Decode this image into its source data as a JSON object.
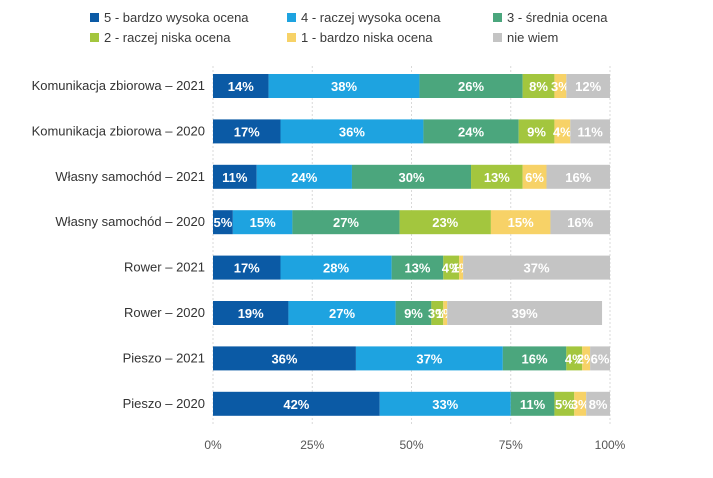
{
  "chart_data": {
    "type": "bar",
    "orientation": "horizontal",
    "stacked": true,
    "title": "",
    "xlabel": "",
    "ylabel": "",
    "xlim": [
      0,
      100
    ],
    "x_ticks": [
      "0%",
      "25%",
      "50%",
      "75%",
      "100%"
    ],
    "legend_position": "top",
    "categories": [
      "Komunikacja zbiorowa – 2021",
      "Komunikacja zbiorowa – 2020",
      "Własny samochód – 2021",
      "Własny samochód – 2020",
      "Rower – 2021",
      "Rower – 2020",
      "Pieszo – 2021",
      "Pieszo – 2020"
    ],
    "series": [
      {
        "name": "5 - bardzo wysoka ocena",
        "color": "#0b5aa5",
        "label_color": "#ffffff",
        "values": [
          14,
          17,
          11,
          5,
          17,
          19,
          36,
          42
        ]
      },
      {
        "name": "4 - raczej wysoka ocena",
        "color": "#1ea3e0",
        "label_color": "#ffffff",
        "values": [
          38,
          36,
          24,
          15,
          28,
          27,
          37,
          33
        ]
      },
      {
        "name": "3 - średnia ocena",
        "color": "#4ba67d",
        "label_color": "#ffffff",
        "values": [
          26,
          24,
          30,
          27,
          13,
          9,
          16,
          11
        ]
      },
      {
        "name": "2 - raczej niska ocena",
        "color": "#a3c63e",
        "label_color": "#ffffff",
        "values": [
          8,
          9,
          13,
          23,
          4,
          3,
          4,
          5
        ]
      },
      {
        "name": "1 - bardzo niska ocena",
        "color": "#f7d267",
        "label_color": "#ffffff",
        "values": [
          3,
          4,
          6,
          15,
          1,
          1,
          2,
          3
        ]
      },
      {
        "name": "nie wiem",
        "color": "#c4c4c4",
        "label_color": "#ffffff",
        "values": [
          12,
          11,
          16,
          16,
          37,
          39,
          6,
          8
        ]
      }
    ]
  }
}
